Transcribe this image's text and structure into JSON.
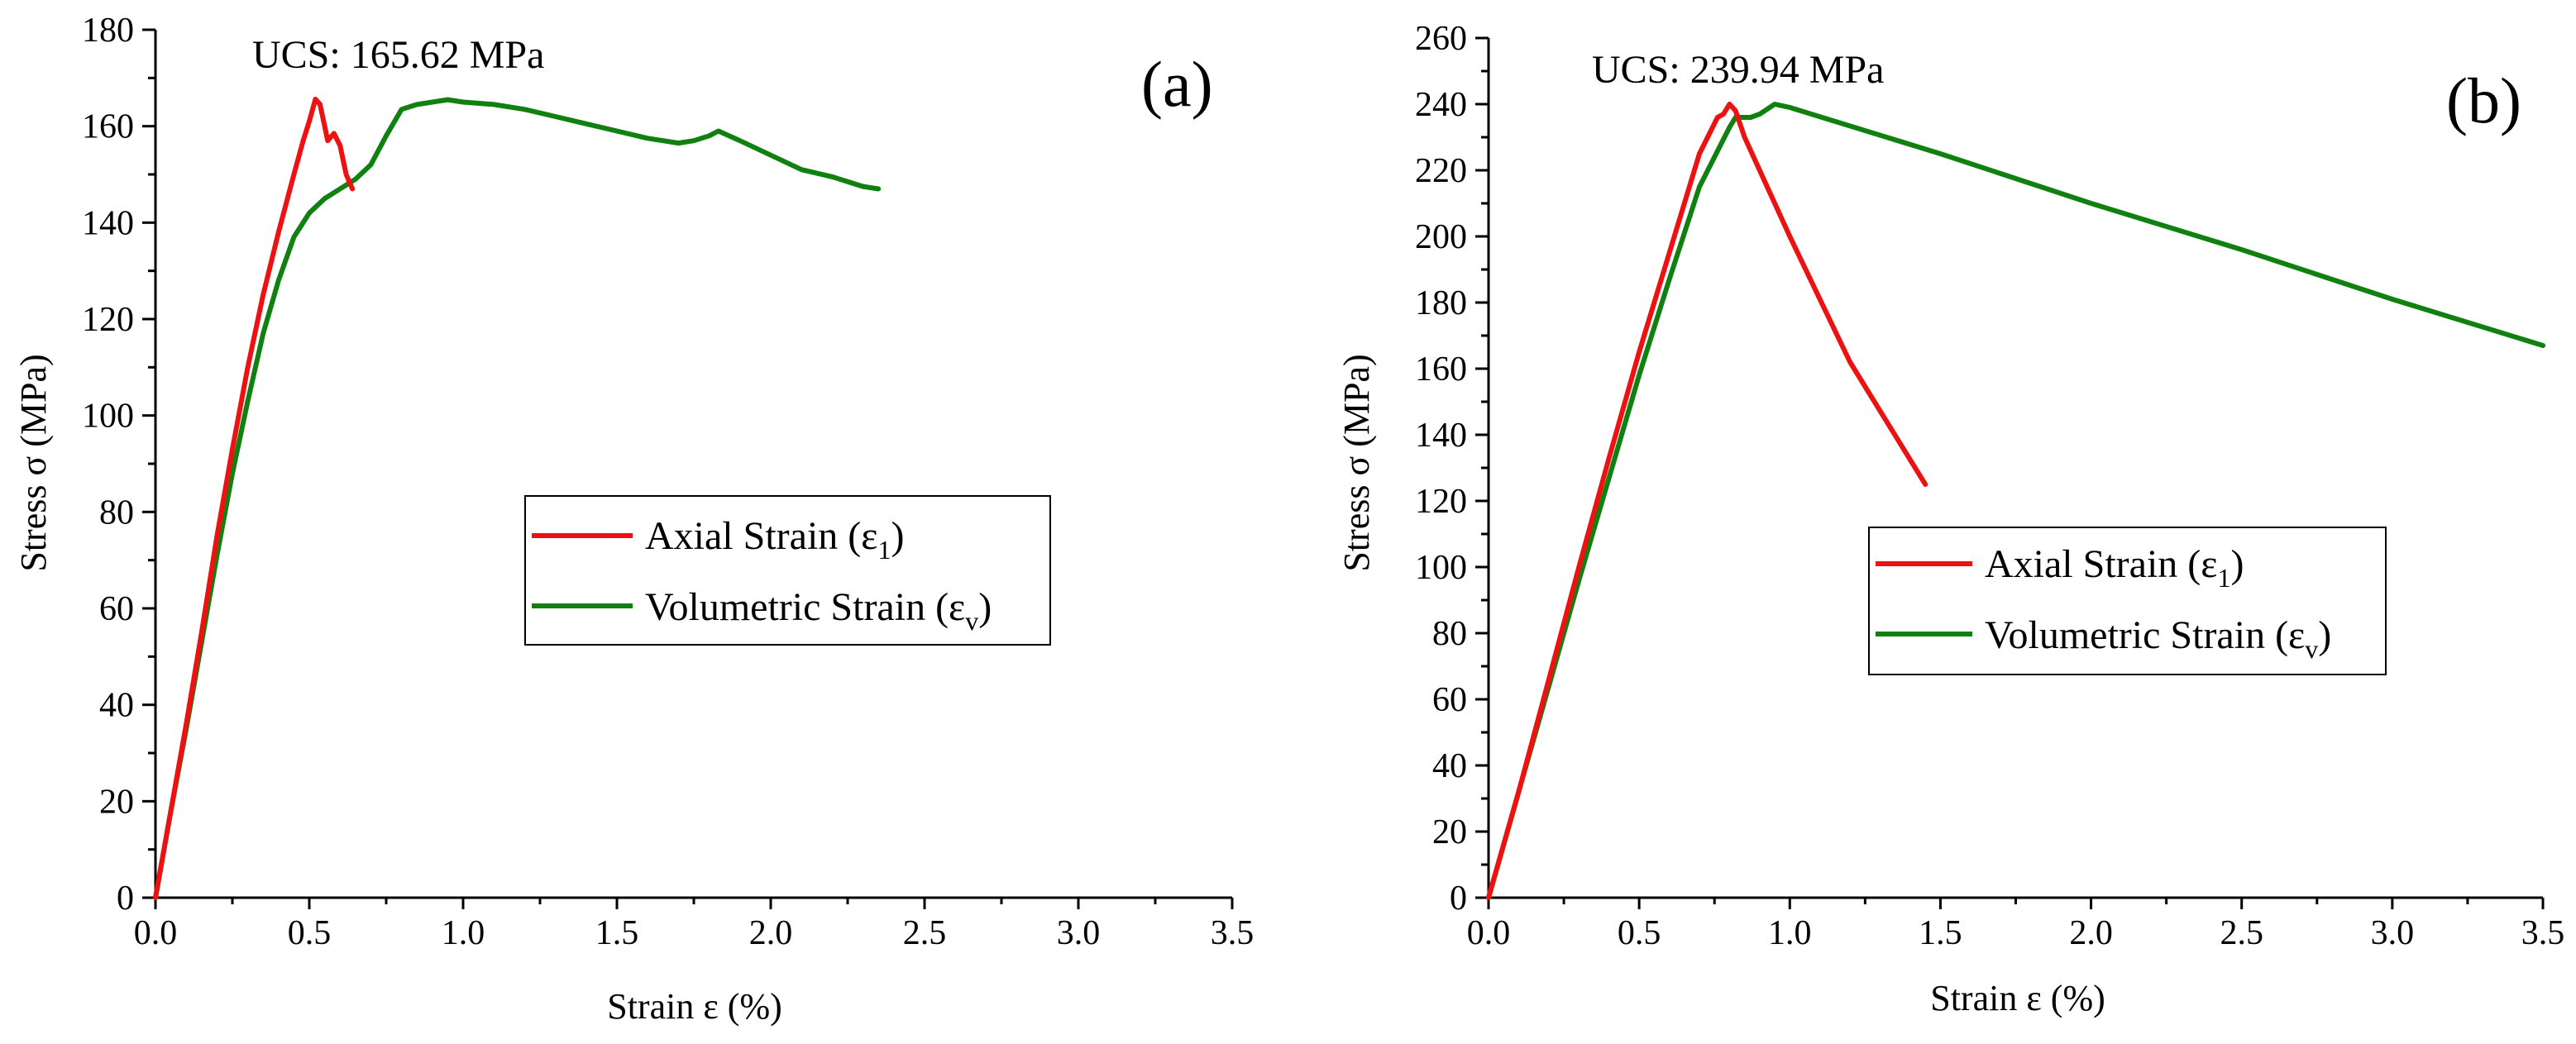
{
  "figure_title": "",
  "colors": {
    "axial": "#ee1111",
    "volumetric": "#108010",
    "axis": "#000000"
  },
  "chart_data": [
    {
      "type": "line",
      "panel_label": "(a)",
      "annotation": "UCS: 165.62 MPa",
      "xlabel": "Strain ε (%)",
      "ylabel": "Stress σ (MPa)",
      "xlim": [
        0,
        3.5
      ],
      "ylim": [
        0,
        180
      ],
      "xticks": [
        0,
        0.5,
        1.0,
        1.5,
        2.0,
        2.5,
        3.0,
        3.5
      ],
      "xtick_labels": [
        "0.0",
        "0.5",
        "1.0",
        "1.5",
        "2.0",
        "2.5",
        "3.0",
        "3.5"
      ],
      "yticks": [
        0,
        20,
        40,
        60,
        80,
        100,
        120,
        140,
        160,
        180
      ],
      "ytick_labels": [
        "0",
        "20",
        "40",
        "60",
        "80",
        "100",
        "120",
        "140",
        "160",
        "180"
      ],
      "grid": false,
      "legend_position": "center-right",
      "series": [
        {
          "name": "Axial Strain",
          "legend_base": "Axial Strain (ε",
          "legend_sub": "1",
          "legend_close": ")",
          "color": "#ee1111",
          "x": [
            0,
            0.05,
            0.1,
            0.15,
            0.2,
            0.25,
            0.3,
            0.35,
            0.4,
            0.45,
            0.48,
            0.5,
            0.52,
            0.535,
            0.55,
            0.56,
            0.58,
            0.6,
            0.62,
            0.64
          ],
          "y": [
            0,
            18,
            36,
            55,
            75,
            93,
            110,
            125,
            138,
            150,
            157,
            161,
            165.6,
            164.5,
            160,
            157,
            158.5,
            156,
            150,
            147
          ]
        },
        {
          "name": "Volumetric Strain",
          "legend_base": "Volumetric Strain (ε",
          "legend_sub": "v",
          "legend_close": ")",
          "color": "#108010",
          "x": [
            0,
            0.05,
            0.1,
            0.15,
            0.2,
            0.25,
            0.3,
            0.35,
            0.4,
            0.45,
            0.5,
            0.55,
            0.6,
            0.65,
            0.7,
            0.75,
            0.8,
            0.85,
            0.9,
            0.95,
            1.0,
            1.1,
            1.2,
            1.3,
            1.4,
            1.5,
            1.6,
            1.65,
            1.7,
            1.75,
            1.8,
            1.83,
            1.9,
            2.0,
            2.1,
            2.2,
            2.3,
            2.35
          ],
          "y": [
            0,
            18,
            35,
            53,
            71,
            88,
            103,
            117,
            128,
            137,
            142,
            145,
            147,
            149,
            152,
            158,
            163.5,
            164.5,
            165,
            165.5,
            165,
            164.5,
            163.5,
            162,
            160.5,
            159,
            157.5,
            157,
            156.5,
            157,
            158,
            159,
            157,
            154,
            151,
            149.5,
            147.5,
            147
          ]
        }
      ]
    },
    {
      "type": "line",
      "panel_label": "(b)",
      "annotation": "UCS: 239.94 MPa",
      "xlabel": "Strain ε (%)",
      "ylabel": "Stress σ (MPa)",
      "xlim": [
        0,
        3.5
      ],
      "ylim": [
        0,
        260
      ],
      "xticks": [
        0,
        0.5,
        1.0,
        1.5,
        2.0,
        2.5,
        3.0,
        3.5
      ],
      "xtick_labels": [
        "0.0",
        "0.5",
        "1.0",
        "1.5",
        "2.0",
        "2.5",
        "3.0",
        "3.5"
      ],
      "yticks": [
        0,
        20,
        40,
        60,
        80,
        100,
        120,
        140,
        160,
        180,
        200,
        220,
        240,
        260
      ],
      "ytick_labels": [
        "0",
        "20",
        "40",
        "60",
        "80",
        "100",
        "120",
        "140",
        "160",
        "180",
        "200",
        "220",
        "240",
        "260"
      ],
      "grid": false,
      "legend_position": "center-right",
      "series": [
        {
          "name": "Axial Strain",
          "legend_base": "Axial Strain (ε",
          "legend_sub": "1",
          "legend_close": ")",
          "color": "#ee1111",
          "x": [
            0,
            0.1,
            0.2,
            0.3,
            0.4,
            0.5,
            0.6,
            0.7,
            0.76,
            0.78,
            0.8,
            0.82,
            0.85,
            1.0,
            1.2,
            1.45
          ],
          "y": [
            0,
            32,
            66,
            100,
            133,
            165,
            195,
            225,
            236,
            237,
            240,
            238,
            230,
            200,
            162,
            125
          ]
        },
        {
          "name": "Volumetric Strain",
          "legend_base": "Volumetric Strain (ε",
          "legend_sub": "v",
          "legend_close": ")",
          "color": "#108010",
          "x": [
            0,
            0.1,
            0.2,
            0.3,
            0.4,
            0.5,
            0.6,
            0.7,
            0.8,
            0.82,
            0.87,
            0.9,
            0.95,
            1.0,
            1.5,
            2.0,
            2.5,
            3.0,
            3.5
          ],
          "y": [
            0,
            32,
            64,
            96,
            127,
            158,
            187,
            215,
            233,
            236,
            236,
            237,
            240,
            239,
            225,
            210,
            196,
            181,
            167
          ]
        }
      ]
    }
  ]
}
